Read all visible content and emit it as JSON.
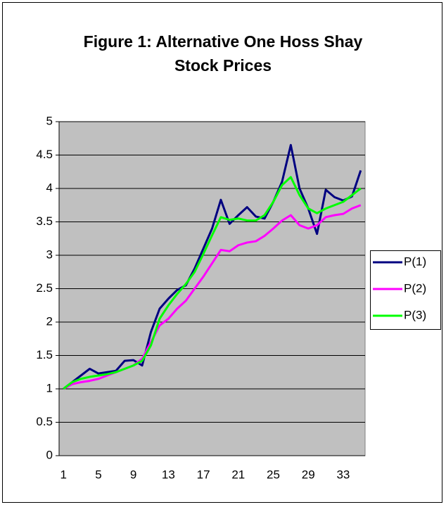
{
  "chart_data": {
    "type": "line",
    "title": "Figure 1: Alternative One Hoss Shay Stock Prices",
    "categories": [
      1,
      null,
      null,
      null,
      5,
      null,
      null,
      null,
      9,
      null,
      null,
      null,
      13,
      null,
      null,
      null,
      17,
      null,
      null,
      null,
      21,
      null,
      null,
      null,
      25,
      null,
      null,
      null,
      29,
      null,
      null,
      null,
      33,
      null,
      null
    ],
    "series": [
      {
        "name": "P(1)",
        "color": "#000080",
        "values": [
          1.0,
          1.1,
          1.2,
          1.3,
          1.23,
          1.25,
          1.27,
          1.42,
          1.43,
          1.35,
          1.85,
          2.2,
          2.35,
          2.48,
          2.55,
          2.8,
          3.1,
          3.4,
          3.83,
          3.47,
          3.6,
          3.72,
          3.58,
          3.55,
          3.8,
          4.1,
          4.65,
          4.0,
          3.7,
          3.32,
          3.98,
          3.87,
          3.82,
          3.88,
          4.27
        ]
      },
      {
        "name": "P(2)",
        "color": "#ff00ff",
        "values": [
          1.0,
          1.07,
          1.1,
          1.12,
          1.15,
          1.2,
          1.25,
          1.3,
          1.35,
          1.45,
          1.7,
          1.95,
          2.05,
          2.2,
          2.32,
          2.5,
          2.68,
          2.88,
          3.08,
          3.06,
          3.15,
          3.19,
          3.21,
          3.29,
          3.4,
          3.52,
          3.6,
          3.45,
          3.4,
          3.45,
          3.57,
          3.6,
          3.62,
          3.7,
          3.75
        ]
      },
      {
        "name": "P(3)",
        "color": "#00ff00",
        "values": [
          1.0,
          1.1,
          1.15,
          1.18,
          1.2,
          1.22,
          1.25,
          1.3,
          1.35,
          1.42,
          1.65,
          2.05,
          2.25,
          2.42,
          2.57,
          2.75,
          3.02,
          3.3,
          3.57,
          3.53,
          3.55,
          3.52,
          3.52,
          3.6,
          3.8,
          4.05,
          4.17,
          3.9,
          3.7,
          3.63,
          3.7,
          3.75,
          3.8,
          3.9,
          4.0
        ]
      }
    ],
    "ylim": [
      0,
      5
    ],
    "yticks": [
      0,
      0.5,
      1,
      1.5,
      2,
      2.5,
      3,
      3.5,
      4,
      4.5,
      5
    ],
    "grid": true,
    "legend": "right"
  }
}
